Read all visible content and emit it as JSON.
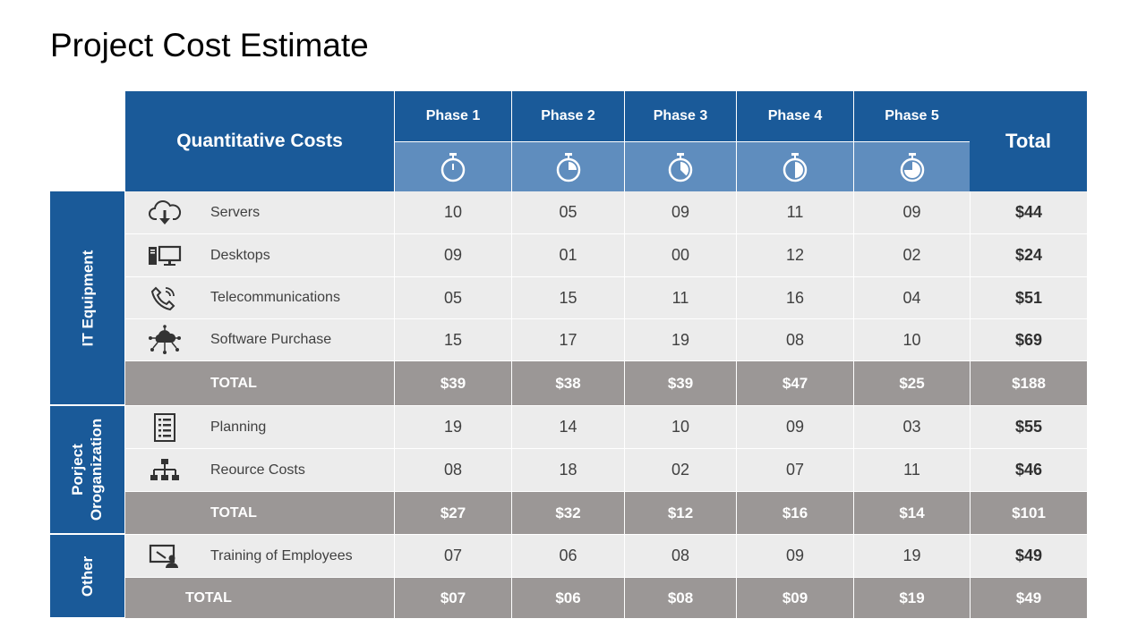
{
  "title": "Project Cost Estimate",
  "header": {
    "main": "Quantitative Costs",
    "total": "Total",
    "phases": [
      "Phase 1",
      "Phase 2",
      "Phase 3",
      "Phase 4",
      "Phase 5"
    ],
    "phase_icons": [
      "stopwatch-icon",
      "stopwatch-quarter-icon",
      "stopwatch-half-icon",
      "stopwatch-half-icon",
      "stopwatch-three-quarter-icon"
    ]
  },
  "groups": [
    {
      "name": "IT Equipment",
      "rows": [
        {
          "label": "Servers",
          "icon": "cloud-download-icon",
          "values": [
            "10",
            "05",
            "09",
            "11",
            "09"
          ],
          "total": "$44"
        },
        {
          "label": "Desktops",
          "icon": "desktop-computer-icon",
          "values": [
            "09",
            "01",
            "00",
            "12",
            "02"
          ],
          "total": "$24"
        },
        {
          "label": "Telecommunications",
          "icon": "phone-ringing-icon",
          "values": [
            "05",
            "15",
            "11",
            "16",
            "04"
          ],
          "total": "$51"
        },
        {
          "label": "Software Purchase",
          "icon": "cloud-network-icon",
          "values": [
            "15",
            "17",
            "19",
            "08",
            "10"
          ],
          "total": "$69"
        }
      ],
      "total_row": {
        "label": "TOTAL",
        "values": [
          "$39",
          "$38",
          "$39",
          "$47",
          "$25"
        ],
        "total": "$188"
      }
    },
    {
      "name": "Porject Oroganization",
      "name_lines": [
        "Porject",
        "Oroganization"
      ],
      "rows": [
        {
          "label": "Planning",
          "icon": "checklist-icon",
          "values": [
            "19",
            "14",
            "10",
            "09",
            "03"
          ],
          "total": "$55"
        },
        {
          "label": "Reource Costs",
          "icon": "org-chart-icon",
          "values": [
            "08",
            "18",
            "02",
            "07",
            "11"
          ],
          "total": "$46"
        }
      ],
      "total_row": {
        "label": "TOTAL",
        "values": [
          "$27",
          "$32",
          "$12",
          "$16",
          "$14"
        ],
        "total": "$101"
      }
    },
    {
      "name": "Other",
      "rows": [
        {
          "label": "Training of Employees",
          "icon": "presentation-user-icon",
          "values": [
            "07",
            "06",
            "08",
            "09",
            "19"
          ],
          "total": "$49"
        }
      ],
      "total_row": {
        "label": "TOTAL",
        "values": [
          "$07",
          "$06",
          "$08",
          "$09",
          "$19"
        ],
        "total": "$49"
      }
    }
  ]
}
